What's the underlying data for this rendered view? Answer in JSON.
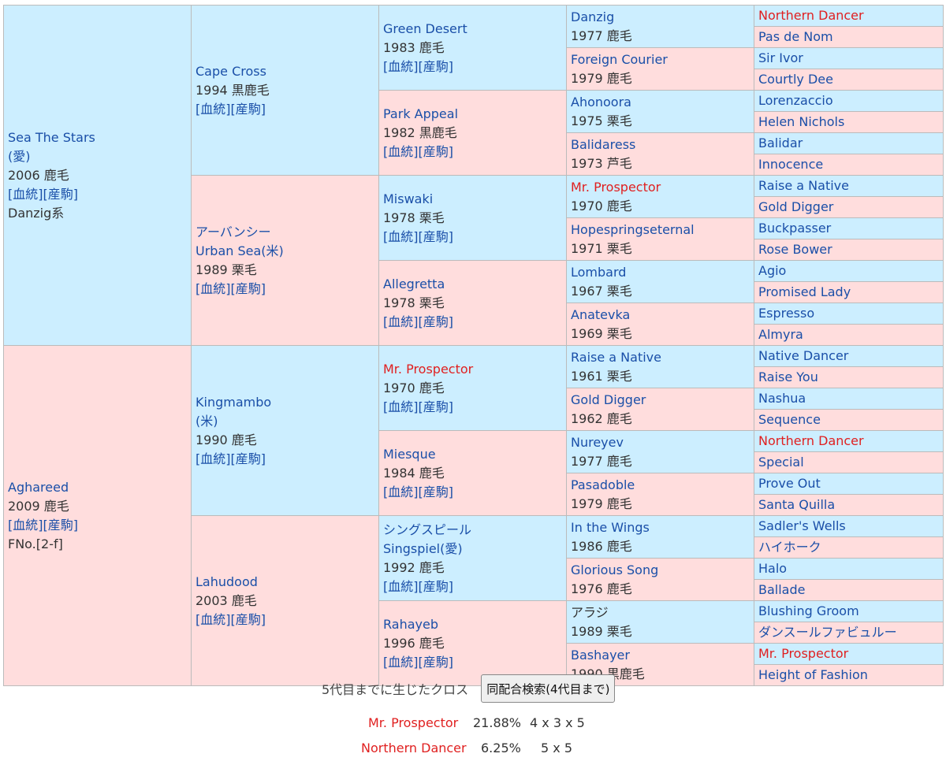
{
  "link_labels": {
    "pedigree": "[血統]",
    "offspring": "[産駒]"
  },
  "gen1": [
    {
      "name": "Sea The Stars",
      "origin": "(愛)",
      "detail": "2006 鹿毛",
      "extra": "Danzig系"
    },
    {
      "name": "Aghareed",
      "detail": "2009 鹿毛",
      "extra": "FNo.[2-f]"
    }
  ],
  "gen2": [
    {
      "name": "Cape Cross",
      "detail": "1994 黒鹿毛"
    },
    {
      "name_ja": "アーバンシー",
      "name": "Urban Sea(米)",
      "detail": "1989 栗毛"
    },
    {
      "name": "Kingmambo",
      "origin": "(米)",
      "detail": "1990 鹿毛"
    },
    {
      "name": "Lahudood",
      "detail": "2003 鹿毛"
    }
  ],
  "gen3": [
    {
      "name": "Green Desert",
      "detail": "1983 鹿毛"
    },
    {
      "name": "Park Appeal",
      "detail": "1982 黒鹿毛"
    },
    {
      "name": "Miswaki",
      "detail": "1978 栗毛"
    },
    {
      "name": "Allegretta",
      "detail": "1978 栗毛"
    },
    {
      "name": "Mr. Prospector",
      "detail": "1970 鹿毛",
      "red": true
    },
    {
      "name": "Miesque",
      "detail": "1984 鹿毛"
    },
    {
      "name_ja": "シングスピール",
      "name": "Singspiel(愛)",
      "detail": "1992 鹿毛"
    },
    {
      "name": "Rahayeb",
      "detail": "1996 鹿毛"
    }
  ],
  "gen4": [
    {
      "name": "Danzig",
      "detail": "1977 鹿毛"
    },
    {
      "name": "Foreign Courier",
      "detail": "1979 鹿毛"
    },
    {
      "name": "Ahonoora",
      "detail": "1975 栗毛"
    },
    {
      "name": "Balidaress",
      "detail": "1973 芦毛"
    },
    {
      "name": "Mr. Prospector",
      "detail": "1970 鹿毛",
      "red": true
    },
    {
      "name": "Hopespringseternal",
      "detail": "1971 栗毛"
    },
    {
      "name": "Lombard",
      "detail": "1967 栗毛"
    },
    {
      "name": "Anatevka",
      "detail": "1969 栗毛"
    },
    {
      "name": "Raise a Native",
      "detail": "1961 栗毛"
    },
    {
      "name": "Gold Digger",
      "detail": "1962 鹿毛"
    },
    {
      "name": "Nureyev",
      "detail": "1977 鹿毛"
    },
    {
      "name": "Pasadoble",
      "detail": "1979 鹿毛"
    },
    {
      "name": "In the Wings",
      "detail": "1986 鹿毛"
    },
    {
      "name": "Glorious Song",
      "detail": "1976 鹿毛"
    },
    {
      "name": "アラジ",
      "detail": "1989 栗毛",
      "plain": true
    },
    {
      "name": "Bashayer",
      "detail": "1990 黒鹿毛"
    }
  ],
  "gen5": [
    {
      "name": "Northern Dancer",
      "red": true
    },
    {
      "name": "Pas de Nom"
    },
    {
      "name": "Sir Ivor"
    },
    {
      "name": "Courtly Dee"
    },
    {
      "name": "Lorenzaccio"
    },
    {
      "name": "Helen Nichols"
    },
    {
      "name": "Balidar"
    },
    {
      "name": "Innocence"
    },
    {
      "name": "Raise a Native"
    },
    {
      "name": "Gold Digger"
    },
    {
      "name": "Buckpasser"
    },
    {
      "name": "Rose Bower"
    },
    {
      "name": "Agio"
    },
    {
      "name": "Promised Lady"
    },
    {
      "name": "Espresso"
    },
    {
      "name": "Almyra"
    },
    {
      "name": "Native Dancer"
    },
    {
      "name": "Raise You"
    },
    {
      "name": "Nashua"
    },
    {
      "name": "Sequence"
    },
    {
      "name": "Northern Dancer",
      "red": true
    },
    {
      "name": "Special"
    },
    {
      "name": "Prove Out"
    },
    {
      "name": "Santa Quilla"
    },
    {
      "name": "Sadler's Wells"
    },
    {
      "name": "ハイホーク"
    },
    {
      "name": "Halo"
    },
    {
      "name": "Ballade"
    },
    {
      "name": "Blushing Groom"
    },
    {
      "name": "ダンスールファビュルー"
    },
    {
      "name": "Mr. Prospector",
      "red": true
    },
    {
      "name": "Height of Fashion"
    }
  ],
  "cross": {
    "title": "5代目までに生じたクロス",
    "search_button": "同配合検索(4代目まで)",
    "rows": [
      {
        "name": "Mr. Prospector",
        "percent": "21.88%",
        "generations": "4 x 3 x 5"
      },
      {
        "name": "Northern Dancer",
        "percent": "6.25%",
        "generations": "5 x 5"
      }
    ],
    "colors": {
      "cross_name": "#e02020"
    }
  },
  "colors": {
    "male_bg": "#cceeff",
    "female_bg": "#ffdddd",
    "link": "#1a4fa8",
    "highlight": "#e02020"
  }
}
